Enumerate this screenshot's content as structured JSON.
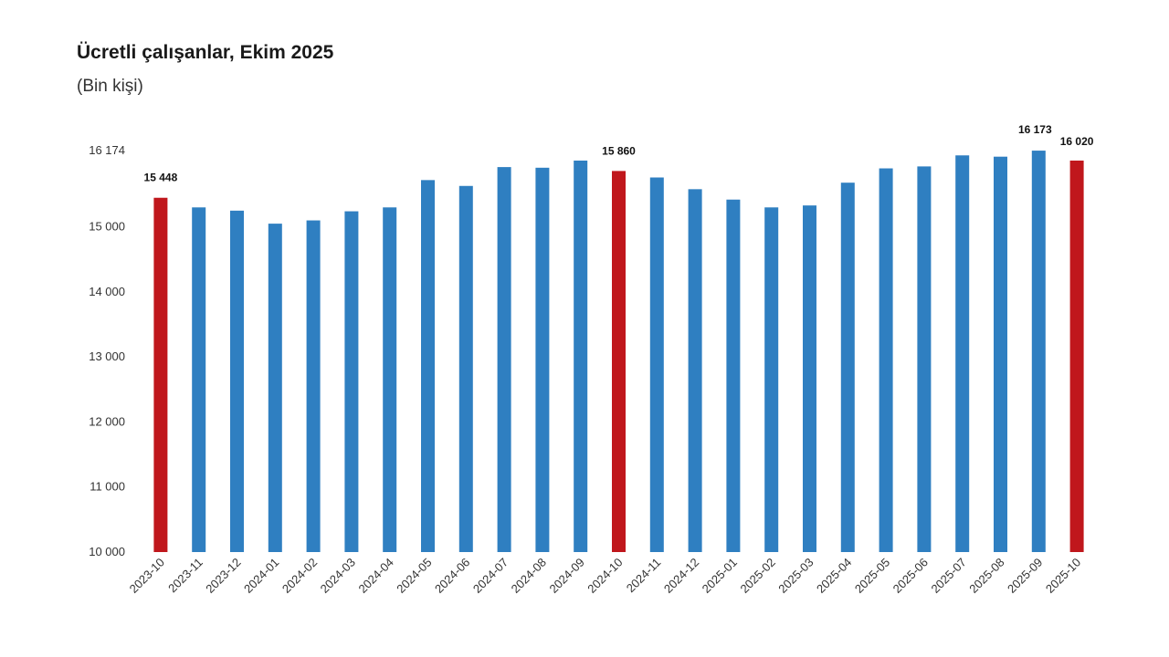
{
  "header": {
    "title": "Ücretli çalışanlar, Ekim 2025",
    "subtitle": "(Bin kişi)"
  },
  "chart_data": {
    "type": "bar",
    "title": "Ücretli çalışanlar, Ekim 2025",
    "subtitle": "(Bin kişi)",
    "xlabel": "",
    "ylabel": "",
    "ylim": [
      10000,
      16174
    ],
    "yticks": [
      10000,
      11000,
      12000,
      13000,
      14000,
      15000,
      16174
    ],
    "ytick_labels": [
      "10 000",
      "11 000",
      "12 000",
      "13 000",
      "14 000",
      "15 000",
      "16 174"
    ],
    "grid": false,
    "categories": [
      "2023-10",
      "2023-11",
      "2023-12",
      "2024-01",
      "2024-02",
      "2024-03",
      "2024-04",
      "2024-05",
      "2024-06",
      "2024-07",
      "2024-08",
      "2024-09",
      "2024-10",
      "2024-11",
      "2024-12",
      "2025-01",
      "2025-02",
      "2025-03",
      "2025-04",
      "2025-05",
      "2025-06",
      "2025-07",
      "2025-08",
      "2025-09",
      "2025-10"
    ],
    "values": [
      15448,
      15300,
      15250,
      15050,
      15100,
      15240,
      15300,
      15720,
      15630,
      15920,
      15910,
      16020,
      15860,
      15760,
      15580,
      15420,
      15300,
      15330,
      15680,
      15900,
      15930,
      16100,
      16080,
      16173,
      16020
    ],
    "highlight_indices": [
      0,
      12,
      24
    ],
    "data_labels": [
      {
        "index": 0,
        "text": "15 448"
      },
      {
        "index": 12,
        "text": "15 860"
      },
      {
        "index": 23,
        "text": "16 173"
      },
      {
        "index": 24,
        "text": "16 020"
      }
    ],
    "colors": {
      "bar": "#2f7fc1",
      "highlight": "#c0171c"
    }
  }
}
